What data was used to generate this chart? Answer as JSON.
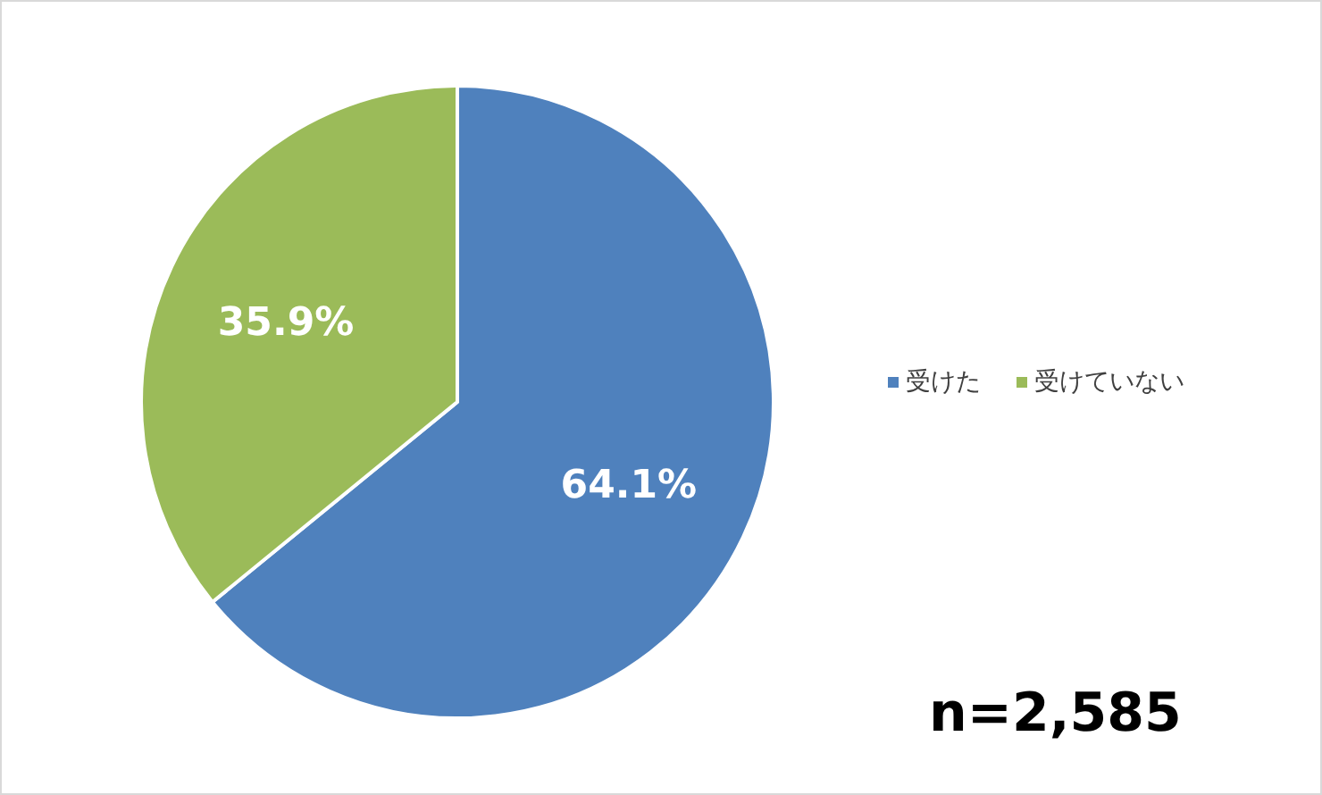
{
  "chart_data": {
    "type": "pie",
    "categories": [
      "受けた",
      "受けていない"
    ],
    "values": [
      64.1,
      35.9
    ],
    "colors": [
      "#4f81bd",
      "#9bbb59"
    ],
    "value_labels": [
      "64.1%",
      "35.9%"
    ],
    "legend": "right",
    "annotations": [
      "n=2,585"
    ]
  }
}
